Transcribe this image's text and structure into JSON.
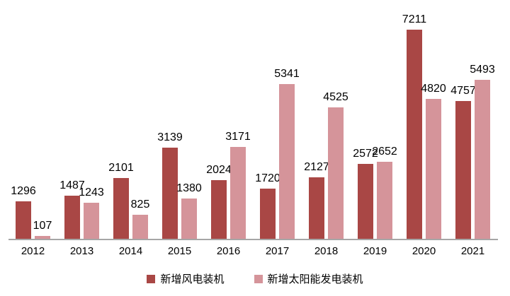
{
  "chart_data": {
    "type": "bar",
    "title": "",
    "xlabel": "",
    "ylabel": "",
    "categories": [
      "2012",
      "2013",
      "2014",
      "2015",
      "2016",
      "2017",
      "2018",
      "2019",
      "2020",
      "2021"
    ],
    "series": [
      {
        "name": "新增风电装机",
        "color": "#A94745",
        "values": [
          1296,
          1487,
          2101,
          3139,
          2024,
          1720,
          2127,
          2572,
          7211,
          4757
        ]
      },
      {
        "name": "新增太阳能发电装机",
        "color": "#D5949A",
        "values": [
          107,
          1243,
          825,
          1380,
          3171,
          5341,
          4525,
          2652,
          4820,
          5493
        ]
      }
    ],
    "value_labels_shown": true,
    "grid": false,
    "y_axis_visible": false,
    "legend_position": "bottom"
  },
  "colors": {
    "background": "#FFFFFF",
    "axis_line": "#A6A6A6",
    "text": "#000000"
  }
}
